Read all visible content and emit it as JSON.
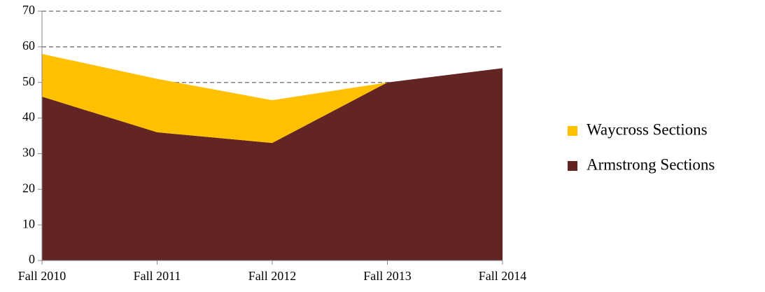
{
  "chart_data": {
    "type": "area",
    "stacked": true,
    "categories": [
      "Fall 2010",
      "Fall 2011",
      "Fall 2012",
      "Fall 2013",
      "Fall 2014"
    ],
    "series": [
      {
        "name": "Waycross Sections",
        "color": "#ffc000",
        "values": [
          12,
          15,
          12,
          0,
          0
        ]
      },
      {
        "name": "Armstrong Sections",
        "color": "#632523",
        "values": [
          46,
          36,
          33,
          50,
          54
        ]
      }
    ],
    "ylim": [
      0,
      70
    ],
    "yticks": [
      0,
      10,
      20,
      30,
      40,
      50,
      60,
      70
    ],
    "grid": true,
    "legend": "right"
  }
}
